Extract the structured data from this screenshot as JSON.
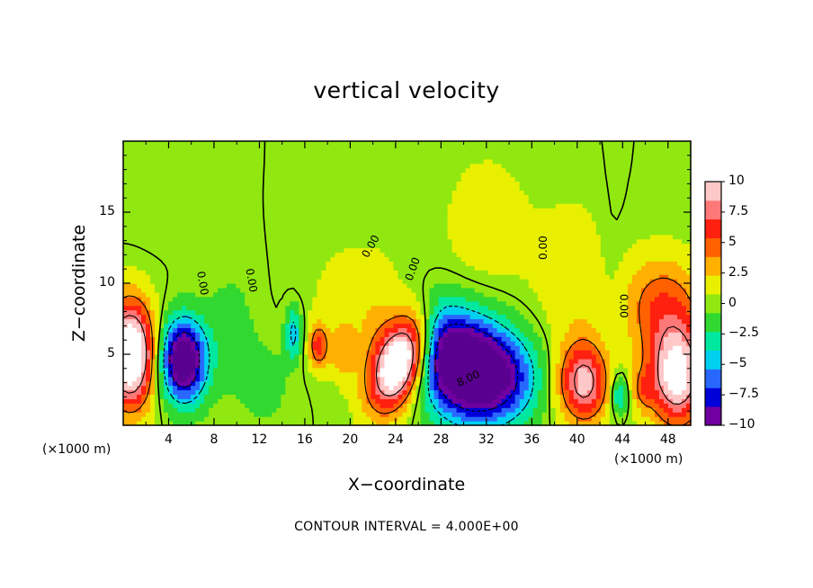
{
  "chart_data": {
    "type": "heatmap",
    "title": "vertical velocity",
    "xlabel": "X−coordinate",
    "ylabel": "Z−coordinate",
    "x_unit_left": "(×1000 m)",
    "x_unit_right": "(×1000 m)",
    "xlim": [
      0,
      50
    ],
    "ylim": [
      0,
      20
    ],
    "xticks": [
      4,
      8,
      12,
      16,
      20,
      24,
      28,
      32,
      36,
      40,
      44,
      48
    ],
    "yticks": [
      5,
      10,
      15
    ],
    "footer": "CONTOUR INTERVAL = 4.000E+00",
    "colorbar": {
      "range": [
        -10,
        10
      ],
      "ticks": [
        10,
        7.5,
        5,
        2.5,
        0,
        -2.5,
        -5,
        -7.5,
        -10
      ],
      "tick_labels": [
        "10",
        "7.5",
        "5",
        "2.5",
        "0",
        "−2.5",
        "−5",
        "−7.5",
        "−10"
      ],
      "colors": [
        "#7000a0",
        "#0000d8",
        "#2868ff",
        "#00d0f0",
        "#00e8a0",
        "#30d830",
        "#90e810",
        "#e8f000",
        "#ffb000",
        "#ff6000",
        "#ff2010",
        "#ff7878",
        "#ffc8c8"
      ]
    },
    "contour_labels": [
      {
        "text": "0.00",
        "x": 7.0,
        "z": 10.0,
        "rot": 80
      },
      {
        "text": "0.00",
        "x": 11.3,
        "z": 10.2,
        "rot": 80
      },
      {
        "text": "0.00",
        "x": 21.8,
        "z": 12.6,
        "rot": -60
      },
      {
        "text": "0.00",
        "x": 25.5,
        "z": 11.0,
        "rot": -70
      },
      {
        "text": "0.00",
        "x": 37.0,
        "z": 12.5,
        "rot": -90
      },
      {
        "text": "0.00",
        "x": 44.1,
        "z": 8.4,
        "rot": 90
      },
      {
        "text": "8.00",
        "x": 30.4,
        "z": 3.3,
        "rot": -25
      }
    ],
    "features": [
      {
        "x": 0.6,
        "z": 5.0,
        "sx": 1.5,
        "sz": 2.6,
        "a": 14
      },
      {
        "x": 5.3,
        "z": 4.6,
        "sx": 1.4,
        "sz": 2.0,
        "a": -13
      },
      {
        "x": 15.0,
        "z": 6.5,
        "sx": 0.5,
        "sz": 1.3,
        "a": -5
      },
      {
        "x": 17.2,
        "z": 5.6,
        "sx": 0.6,
        "sz": 1.1,
        "a": 6
      },
      {
        "x": 19.3,
        "z": 5.2,
        "sx": 0.8,
        "sz": 1.4,
        "a": 3
      },
      {
        "x": 22.4,
        "z": 5.5,
        "sx": 1.4,
        "sz": 3.0,
        "a": 1.5
      },
      {
        "x": 24.5,
        "z": 4.5,
        "sx": 1.5,
        "sz": 2.5,
        "a": 14,
        "rot": 0.55
      },
      {
        "x": 27.8,
        "z": 6.5,
        "sx": 1.4,
        "sz": 2.2,
        "a": -3
      },
      {
        "x": 30.5,
        "z": 4.0,
        "sx": 3.0,
        "sz": 2.5,
        "a": -15,
        "rot": 0.45
      },
      {
        "x": 34.5,
        "z": 3.5,
        "sx": 2.0,
        "sz": 2.0,
        "a": -3
      },
      {
        "x": 40.6,
        "z": 3.0,
        "sx": 1.6,
        "sz": 2.0,
        "a": 9
      },
      {
        "x": 43.7,
        "z": 2.2,
        "sx": 0.5,
        "sz": 1.0,
        "a": -5
      },
      {
        "x": 45.8,
        "z": 2.5,
        "sx": 0.6,
        "sz": 1.0,
        "a": 3
      },
      {
        "x": 48.8,
        "z": 3.5,
        "sx": 1.8,
        "sz": 2.5,
        "a": 11
      },
      {
        "x": 47.5,
        "z": 8.5,
        "sx": 2.5,
        "sz": 2.5,
        "a": 5
      },
      {
        "x": 32.0,
        "z": 14.0,
        "sx": 3.0,
        "sz": 4.0,
        "a": 1.5
      },
      {
        "x": 40.0,
        "z": 10.0,
        "sx": 2.5,
        "sz": 4.0,
        "a": 2.0
      },
      {
        "x": 9.5,
        "z": 6.5,
        "sx": 1.5,
        "sz": 3.0,
        "a": -1.5
      },
      {
        "x": 12.5,
        "z": 3.0,
        "sx": 1.5,
        "sz": 2.0,
        "a": -1.5
      },
      {
        "x": 20.5,
        "z": 9.0,
        "sx": 3.0,
        "sz": 3.0,
        "a": 1.5
      },
      {
        "x": 43.0,
        "z": 9.0,
        "sx": 1.0,
        "sz": 5.0,
        "a": -1.0
      },
      {
        "x": 3.0,
        "z": 15.5,
        "sx": 2.5,
        "sz": 2.0,
        "a": -0.7
      }
    ]
  }
}
